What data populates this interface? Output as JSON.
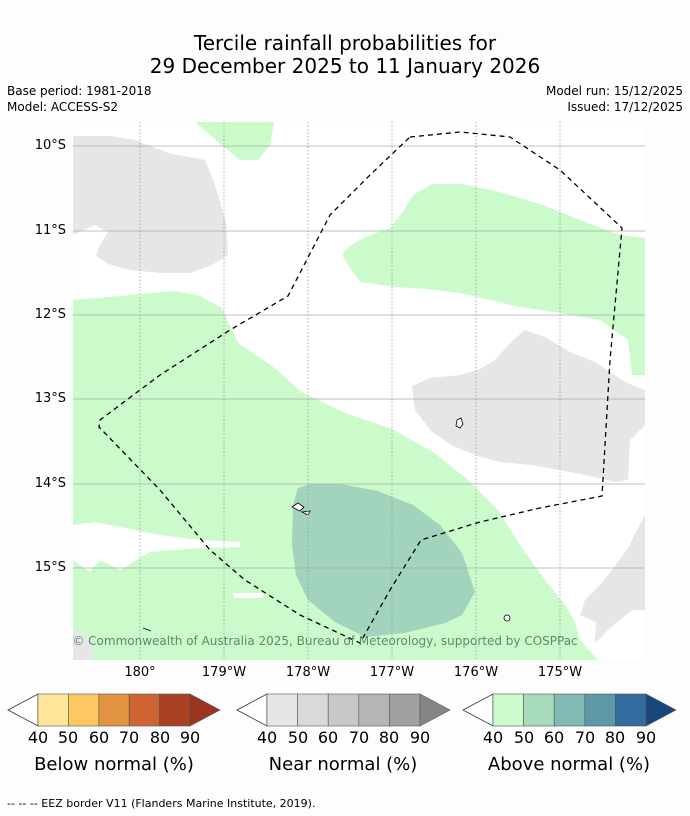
{
  "header": {
    "title_line1": "Tercile rainfall probabilities for",
    "title_line2": "29 December 2025 to 11 January 2026",
    "base_period": "Base period: 1981-2018",
    "model": "Model: ACCESS-S2",
    "model_run": "Model run: 15/12/2025",
    "issued": "Issued: 17/12/2025"
  },
  "map": {
    "lat_labels": [
      "10°S",
      "11°S",
      "12°S",
      "13°S",
      "14°S",
      "15°S"
    ],
    "lon_labels": [
      "180°",
      "179°W",
      "178°W",
      "177°W",
      "176°W",
      "175°W"
    ],
    "copyright": "© Commonwealth of Australia 2025, Bureau of Meteorology, supported by COSPPac",
    "colors": {
      "land_gray": "#e6e6e6",
      "above_40": "#cbfbca",
      "above_50": "#a1d3bd"
    }
  },
  "colorbars": [
    {
      "name": "below",
      "title": "Below normal (%)",
      "ticks": [
        "40",
        "50",
        "60",
        "70",
        "80",
        "90"
      ],
      "colors": [
        "#fee79b",
        "#fdc762",
        "#e19442",
        "#cd6432",
        "#aa4124",
        "#9b3421"
      ]
    },
    {
      "name": "near",
      "title": "Near normal (%)",
      "ticks": [
        "40",
        "50",
        "60",
        "70",
        "80",
        "90"
      ],
      "colors": [
        "#e6e6e6",
        "#d9d9d9",
        "#c8c8c8",
        "#b5b5b5",
        "#a0a0a0",
        "#858585"
      ]
    },
    {
      "name": "above",
      "title": "Above normal (%)",
      "ticks": [
        "40",
        "50",
        "60",
        "70",
        "80",
        "90"
      ],
      "colors": [
        "#cbfbca",
        "#a7dbbb",
        "#81bab3",
        "#5c98a6",
        "#326b9e",
        "#17477d"
      ]
    }
  ],
  "footer": "--  --  -- EEZ border V11 (Flanders Marine Institute, 2019)."
}
